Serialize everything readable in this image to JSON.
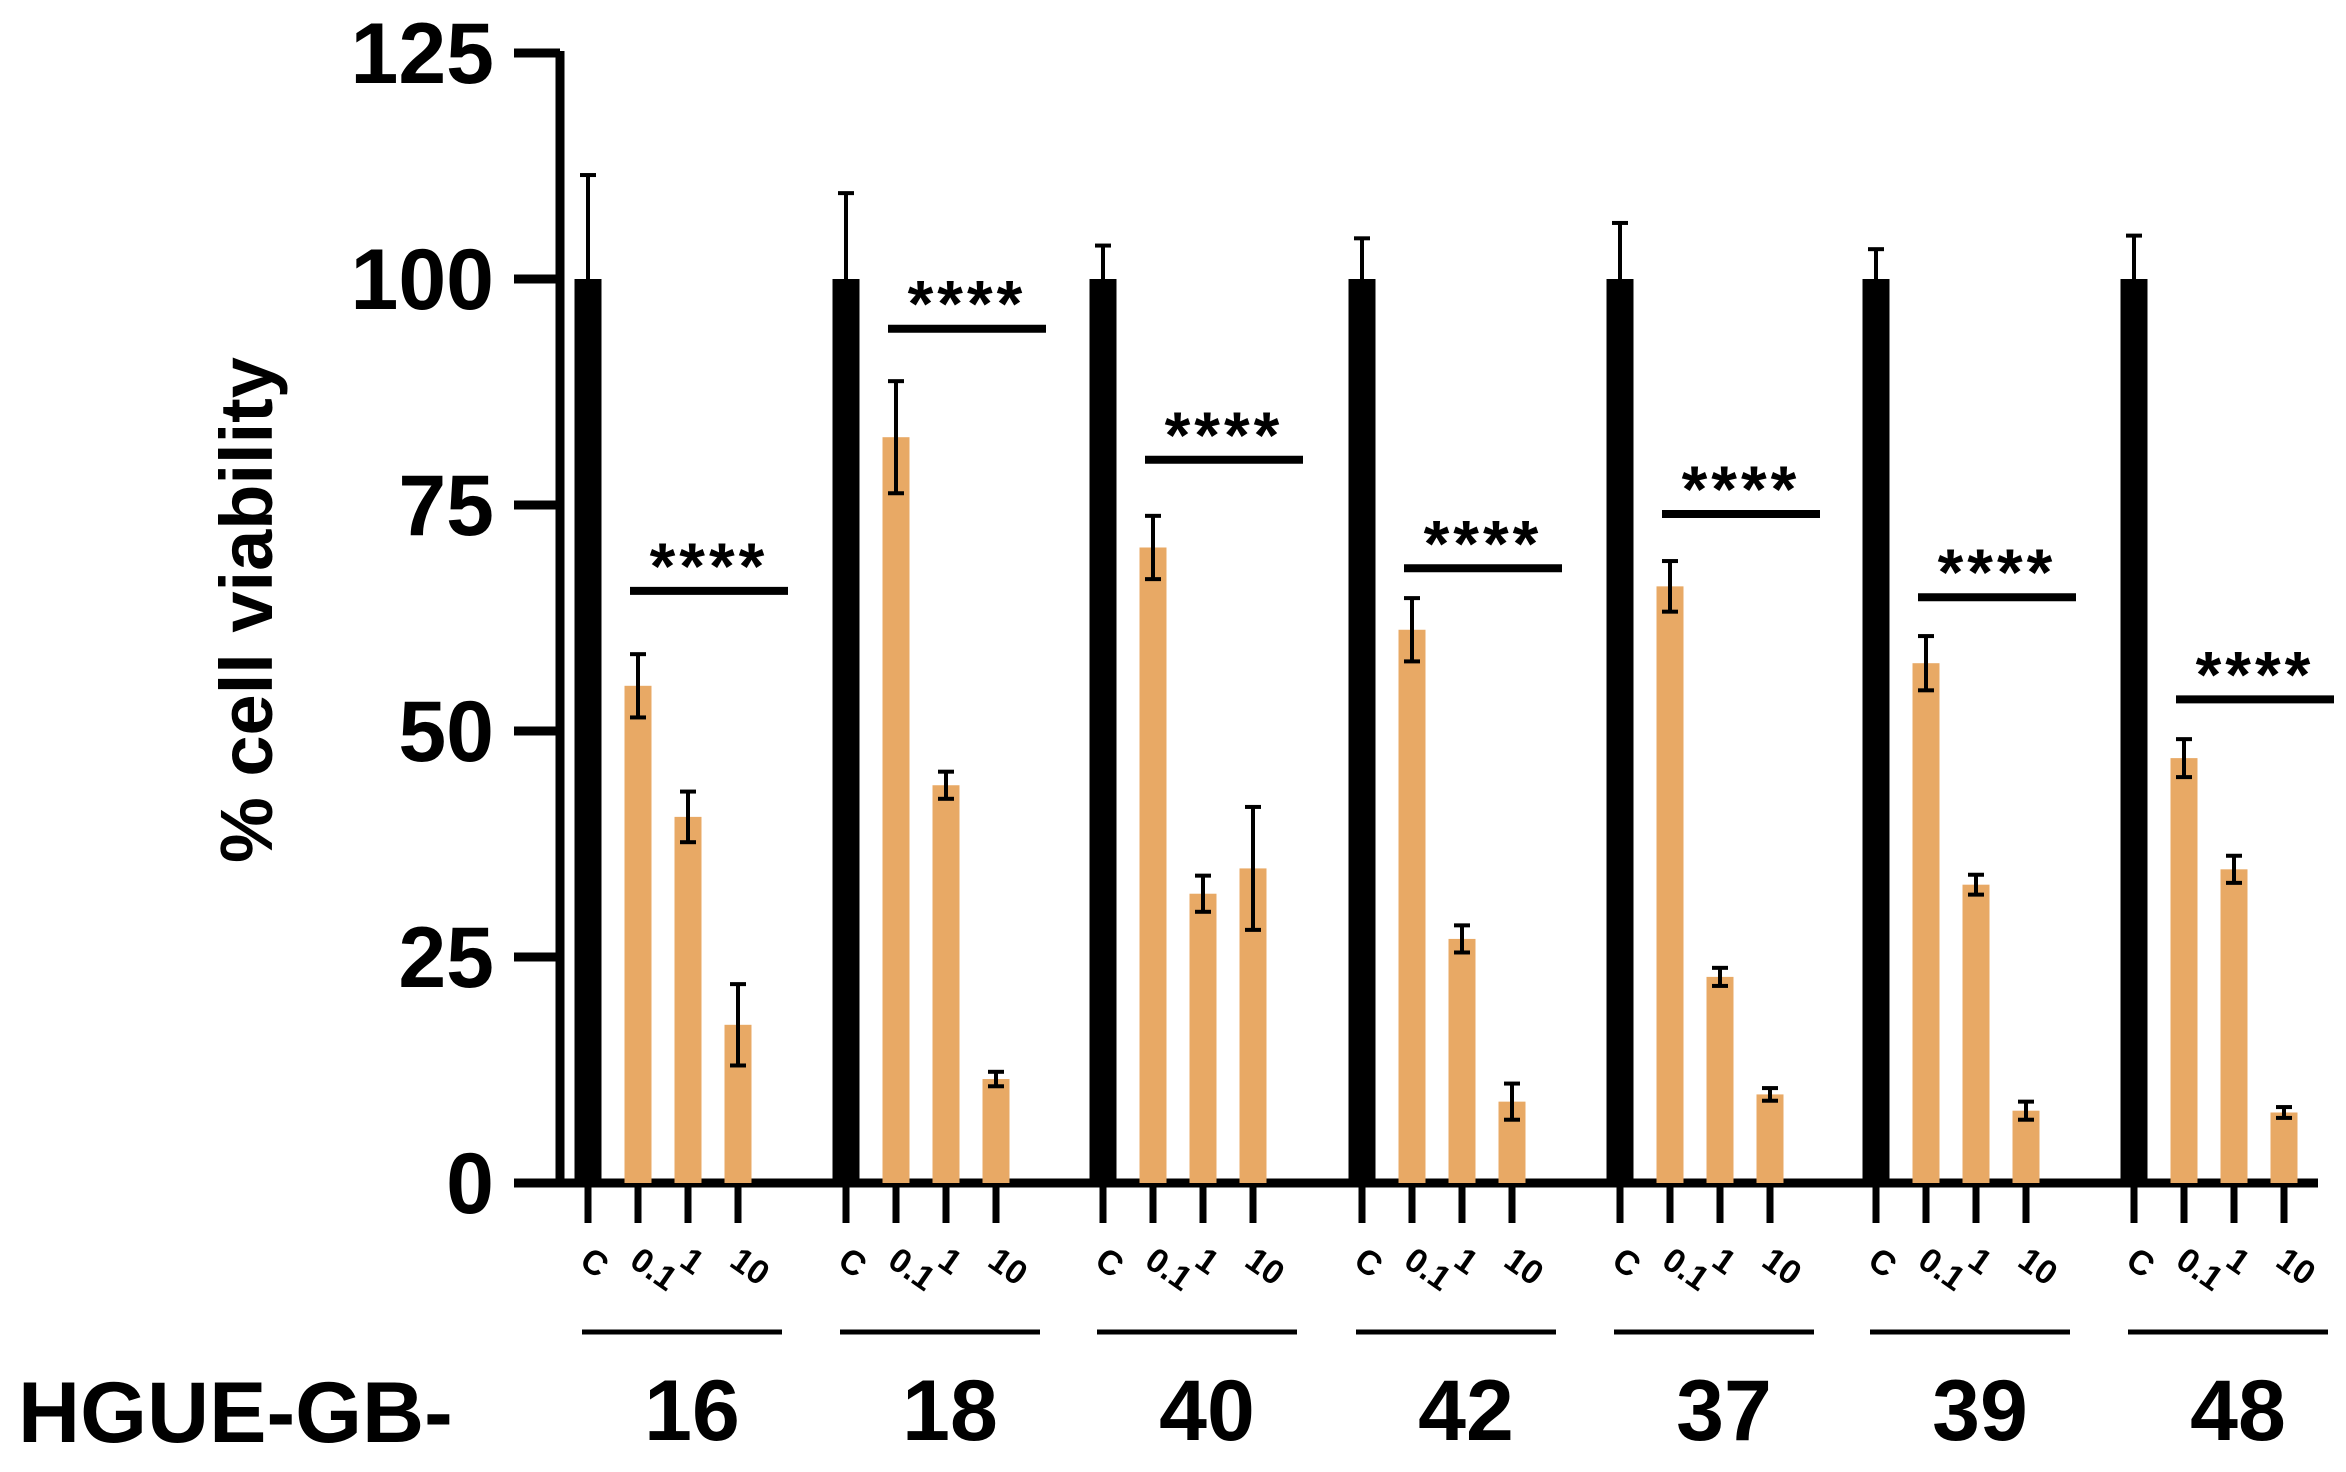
{
  "chart_data": {
    "type": "bar",
    "title": "",
    "xlabel": "",
    "ylabel": "% cell viability",
    "ylim": [
      0,
      125
    ],
    "yticks": [
      "0",
      "25",
      "50",
      "75",
      "100",
      "125"
    ],
    "group_prefix": "HGUE-GB-",
    "conditions": [
      "C",
      "0.1",
      "1",
      "10"
    ],
    "groups": [
      "16",
      "18",
      "40",
      "42",
      "37",
      "39",
      "48"
    ],
    "significance_label": "****",
    "values": [
      [
        100,
        55,
        40.5,
        17.5
      ],
      [
        100,
        82.5,
        44,
        11.5
      ],
      [
        100,
        70.3,
        32,
        34.8
      ],
      [
        100,
        61.2,
        27,
        9
      ],
      [
        100,
        66,
        22.8,
        9.8
      ],
      [
        100,
        57.5,
        33,
        8
      ],
      [
        100,
        47,
        34.7,
        7.8
      ]
    ],
    "errors": [
      [
        11.5,
        3.5,
        2.8,
        4.5
      ],
      [
        9.5,
        6.2,
        1.5,
        0.8
      ],
      [
        3.7,
        3.5,
        2,
        6.8
      ],
      [
        4.5,
        3.5,
        1.5,
        2
      ],
      [
        6.2,
        2.8,
        1,
        0.7
      ],
      [
        3.3,
        3,
        1.1,
        1
      ],
      [
        4.8,
        2.1,
        1.5,
        0.6
      ]
    ],
    "significance_heights": [
      65.5,
      94.5,
      80,
      68,
      74,
      64.8,
      53.5
    ],
    "grid": false,
    "colors": {
      "control": "#000000",
      "treatment": "#e8a965",
      "axis": "#000000"
    }
  }
}
